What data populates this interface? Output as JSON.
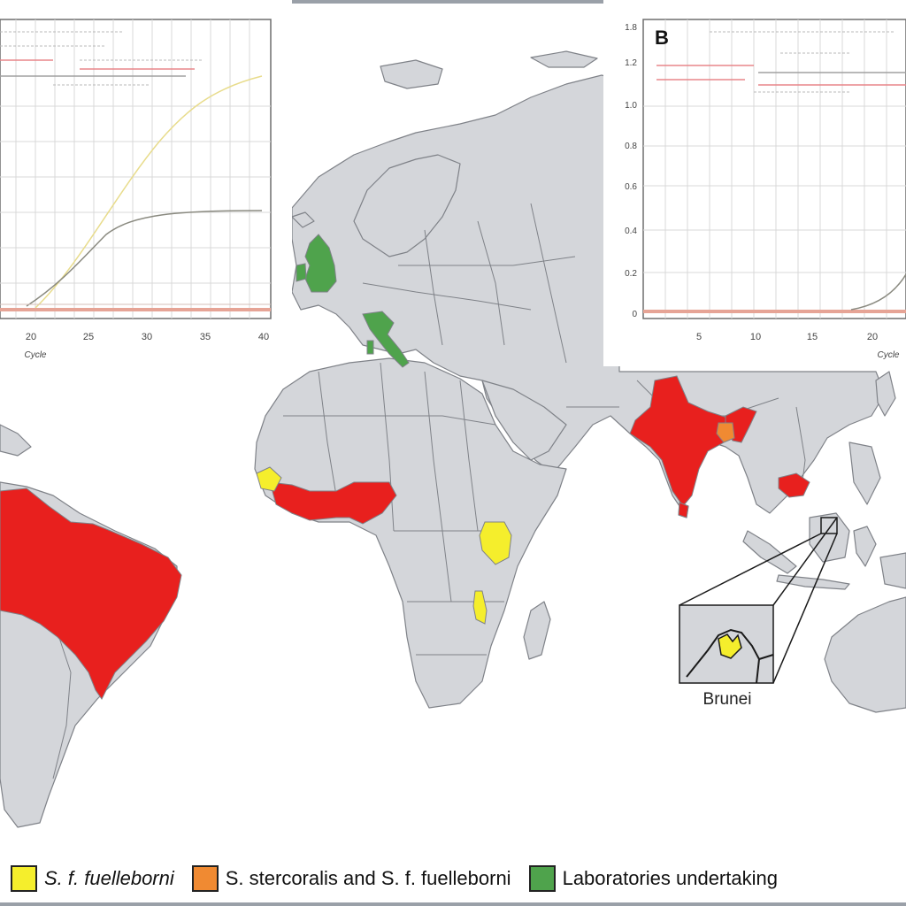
{
  "colors": {
    "ocean": "#ffffff",
    "land": "#d4d6da",
    "border": "#7f8288",
    "s_stercoralis": "#e8201e",
    "s_f_fuelleborni": "#f5ee2c",
    "both_species": "#f08a32",
    "laboratories": "#4fa34c",
    "curve_light": "#e8dc8c",
    "curve_dark": "#8a8a80",
    "baseline": "#e6a496"
  },
  "panels": {
    "a": {
      "axis_label": "Cycle",
      "x_ticks": [
        "20",
        "25",
        "30",
        "35",
        "40"
      ]
    },
    "b": {
      "letter": "B",
      "axis_label": "Cycle",
      "x_ticks": [
        "5",
        "10",
        "15",
        "20"
      ],
      "y_ticks": [
        "1.8",
        "1.2",
        "1.0",
        "0.8",
        "0.6",
        "0.4",
        "0.2",
        "0"
      ]
    }
  },
  "inset": {
    "label": "Brunei"
  },
  "legend": {
    "items": [
      {
        "label": "S. f. fuelleborni",
        "italic": true,
        "color_key": "s_f_fuelleborni"
      },
      {
        "label": "S. stercoralis and S. f. fuelleborni",
        "italic": false,
        "color_key": "both_species"
      },
      {
        "label": "Laboratories undertaking",
        "italic": false,
        "color_key": "laboratories"
      }
    ]
  }
}
